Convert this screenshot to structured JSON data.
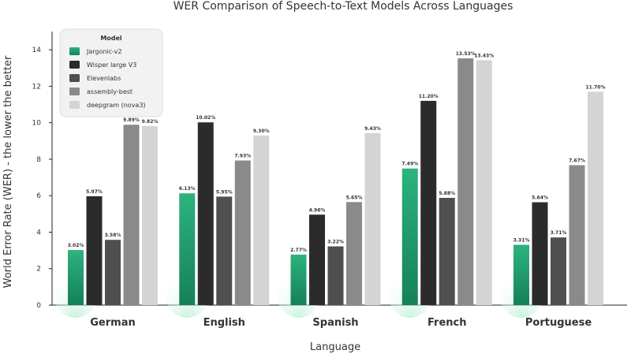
{
  "chart_data": {
    "type": "bar",
    "title": "WER Comparison of Speech-to-Text Models Across Languages",
    "xlabel": "Language",
    "ylabel": "World Error Rate (WER) - the lower the better",
    "ylim": [
      0,
      15
    ],
    "yticks": [
      0,
      2,
      4,
      6,
      8,
      10,
      12,
      14
    ],
    "grid": false,
    "legend_title": "Model",
    "legend_position": "top-left",
    "categories": [
      "German",
      "English",
      "Spanish",
      "French",
      "Portuguese"
    ],
    "series": [
      {
        "name": "Jargonic-v2",
        "color": "#1f9e6e",
        "values": [
          3.02,
          6.13,
          2.77,
          7.49,
          3.31
        ],
        "labels": [
          "3.02%",
          "6.13%",
          "2.77%",
          "7.49%",
          "3.31%"
        ]
      },
      {
        "name": "Wisper large V3",
        "color": "#2b2b2b",
        "values": [
          5.97,
          10.02,
          4.96,
          11.2,
          5.64
        ],
        "labels": [
          "5.97%",
          "10.02%",
          "4.96%",
          "11.20%",
          "5.64%"
        ]
      },
      {
        "name": "Elevenlabs",
        "color": "#4f4f4f",
        "values": [
          3.58,
          5.95,
          3.22,
          5.88,
          3.71
        ],
        "labels": [
          "3.58%",
          "5.95%",
          "3.22%",
          "5.88%",
          "3.71%"
        ]
      },
      {
        "name": "assembly-best",
        "color": "#8a8a8a",
        "values": [
          9.89,
          7.93,
          5.65,
          13.53,
          7.67
        ],
        "labels": [
          "9.89%",
          "7.93%",
          "5.65%",
          "13.53%",
          "7.67%"
        ]
      },
      {
        "name": "deepgram (nova3)",
        "color": "#d4d4d4",
        "values": [
          9.82,
          9.3,
          9.43,
          13.43,
          11.7
        ],
        "labels": [
          "9.82%",
          "9.30%",
          "9.43%",
          "13.43%",
          "11.70%"
        ]
      }
    ]
  }
}
